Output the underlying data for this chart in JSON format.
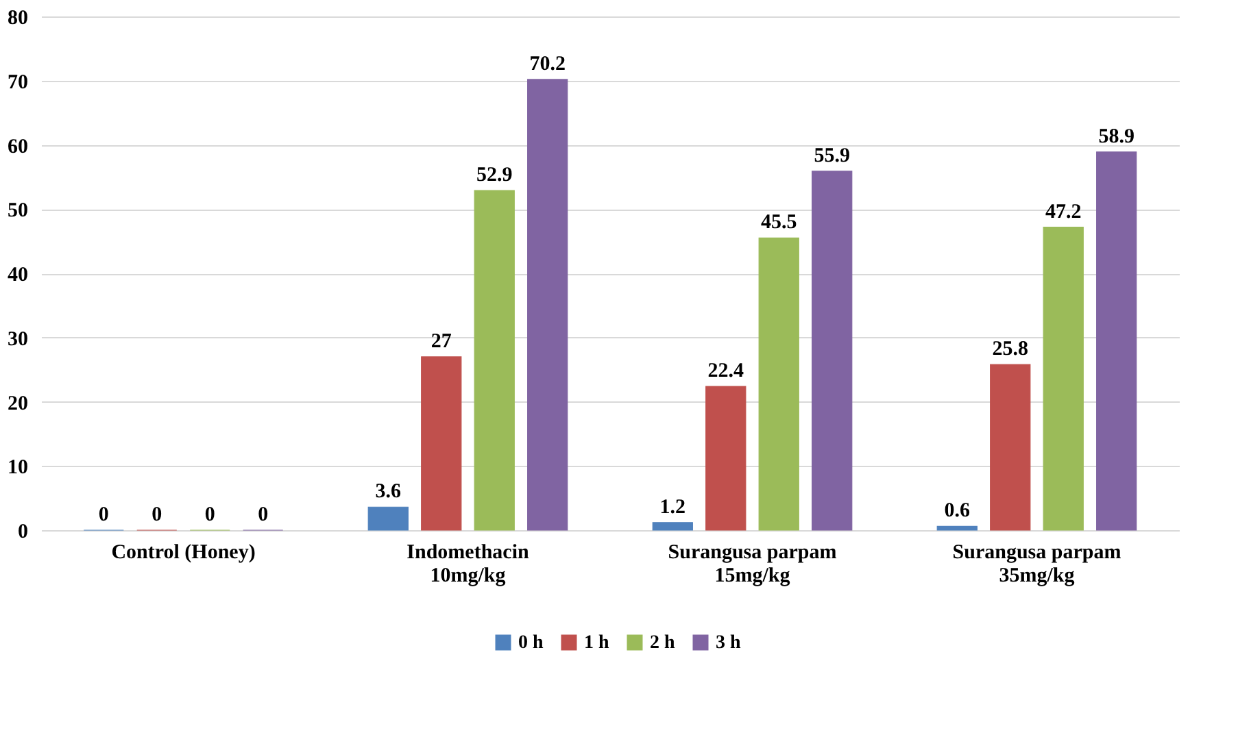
{
  "chart_data": {
    "type": "bar",
    "categories": [
      "Control (Honey)",
      "Indomethacin\n10mg/kg",
      "Surangusa parpam\n15mg/kg",
      "Surangusa parpam\n35mg/kg"
    ],
    "series": [
      {
        "name": "0 h",
        "color": "#4f81bd",
        "values": [
          0,
          3.6,
          1.2,
          0.6
        ]
      },
      {
        "name": "1 h",
        "color": "#c0504d",
        "values": [
          0,
          27,
          22.4,
          25.8
        ]
      },
      {
        "name": "2 h",
        "color": "#9bbb59",
        "values": [
          0,
          52.9,
          45.5,
          47.2
        ]
      },
      {
        "name": "3 h",
        "color": "#8064a2",
        "values": [
          0,
          70.2,
          55.9,
          58.9
        ]
      }
    ],
    "ylim": [
      0,
      80
    ],
    "yticks": [
      0,
      10,
      20,
      30,
      40,
      50,
      60,
      70,
      80
    ],
    "grid": "y",
    "legend": "bottom",
    "data_labels": true
  }
}
